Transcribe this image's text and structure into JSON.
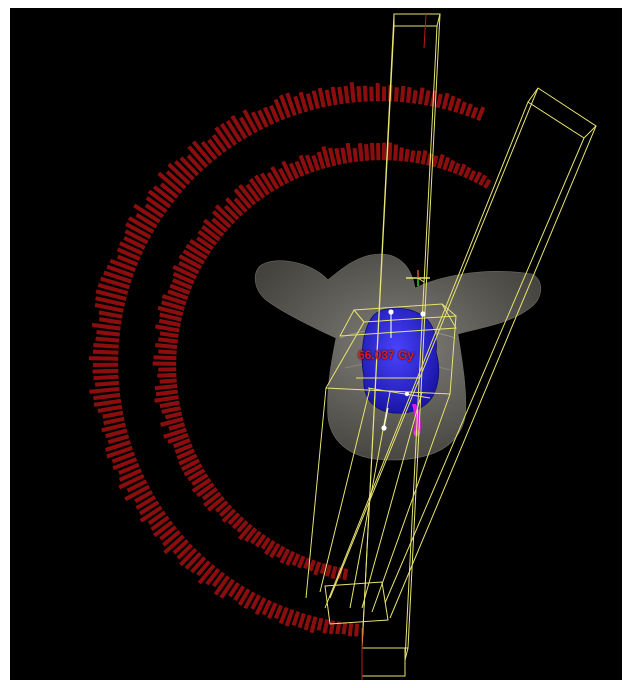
{
  "viewport": {
    "background": "#000000",
    "dose_readout": "66.037 Gy"
  },
  "colors": {
    "arc_fill": "#8b0d0d",
    "arc_stroke": "#b01414",
    "beam_outline": "#e8e470",
    "anatomy": "#8a877f",
    "target": "#2a24d8",
    "structure_magenta": "#d81ee0",
    "dose_text": "#e01a1a"
  },
  "icons": {
    "isocenter": "crosshair-icon",
    "arc_segments": "dose-bar-icon"
  }
}
